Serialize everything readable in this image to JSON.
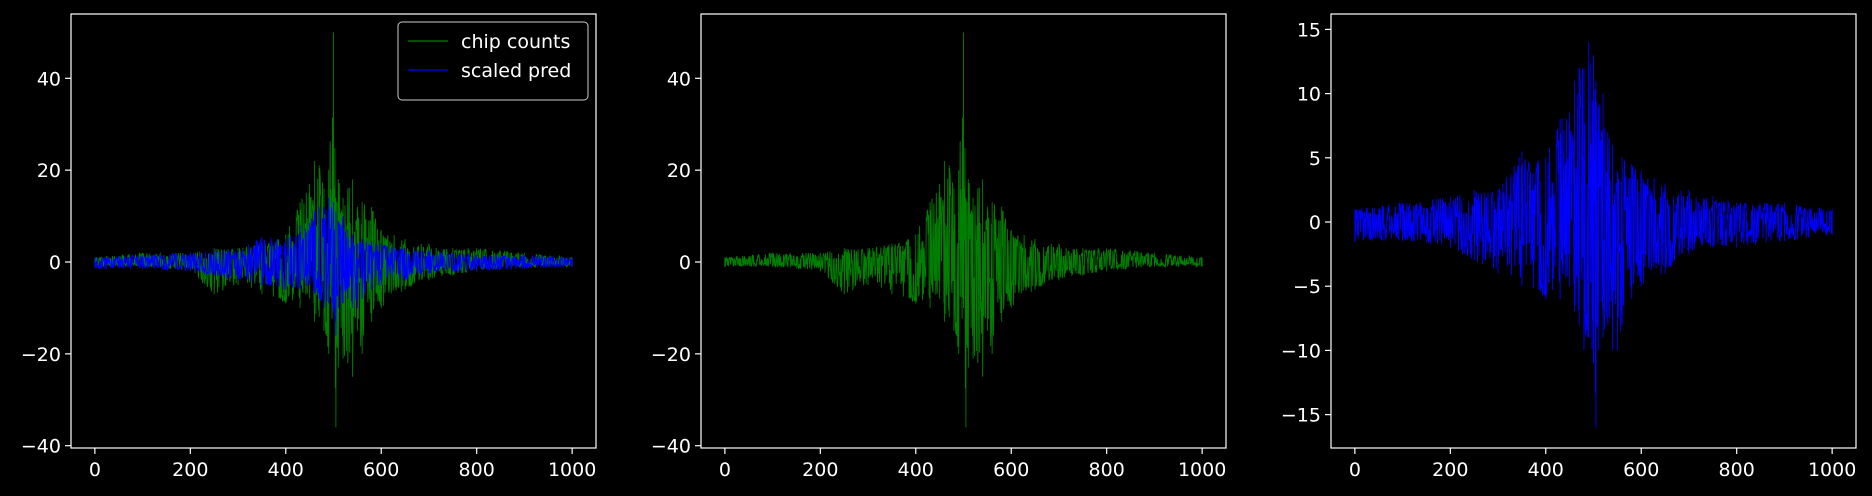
{
  "chart_data": [
    {
      "type": "line",
      "xlim": [
        -50,
        1050
      ],
      "ylim": [
        -40.5,
        54
      ],
      "xticks": [
        0,
        200,
        400,
        600,
        800,
        1000
      ],
      "yticks": [
        -40,
        -20,
        0,
        20,
        40
      ],
      "grid": false,
      "legend": {
        "placement": "top-right",
        "entries": [
          "chip counts",
          "scaled pred"
        ]
      },
      "series": [
        {
          "name": "chip counts",
          "color": "#008000",
          "x": [
            0,
            100,
            200,
            250,
            300,
            350,
            400,
            430,
            450,
            460,
            470,
            480,
            490,
            500,
            505,
            510,
            520,
            530,
            540,
            550,
            560,
            580,
            600,
            650,
            700,
            750,
            800,
            900,
            1000
          ],
          "upper": [
            1,
            2,
            2,
            3,
            3,
            4,
            6,
            13,
            17,
            22,
            21,
            16,
            20,
            50,
            14,
            18,
            14,
            16,
            18,
            12,
            13,
            12,
            7,
            5,
            4,
            3,
            3,
            2,
            1
          ],
          "lower": [
            -1,
            -1,
            -2,
            -7,
            -5,
            -7,
            -9,
            -10,
            -8,
            -13,
            -12,
            -15,
            -20,
            -10,
            -36,
            -23,
            -21,
            -22,
            -25,
            -15,
            -20,
            -13,
            -10,
            -6,
            -4,
            -3,
            -2,
            -1,
            -1
          ]
        },
        {
          "name": "scaled pred",
          "color": "#0000ff",
          "x": [
            0,
            100,
            200,
            250,
            300,
            350,
            400,
            430,
            450,
            460,
            470,
            480,
            490,
            500,
            505,
            510,
            520,
            530,
            540,
            550,
            560,
            580,
            600,
            650,
            700,
            750,
            800,
            900,
            1000
          ],
          "upper": [
            1,
            1.5,
            2,
            2.5,
            2.5,
            5.5,
            5,
            8,
            8.5,
            11,
            12,
            12,
            14,
            13,
            11,
            9,
            10,
            7,
            6,
            4,
            5,
            4.5,
            4,
            3,
            2.5,
            2,
            1.5,
            1.5,
            1
          ],
          "lower": [
            -1.5,
            -1.5,
            -2,
            -3,
            -4,
            -5,
            -6,
            -6,
            -5,
            -7,
            -8,
            -10,
            -9,
            -11,
            -16,
            -10,
            -9,
            -8,
            -10,
            -10,
            -8,
            -6,
            -5,
            -4,
            -2.5,
            -2,
            -2,
            -1.5,
            -1
          ]
        }
      ]
    },
    {
      "type": "line",
      "xlim": [
        -50,
        1050
      ],
      "ylim": [
        -40.5,
        54
      ],
      "xticks": [
        0,
        200,
        400,
        600,
        800,
        1000
      ],
      "yticks": [
        -40,
        -20,
        0,
        20,
        40
      ],
      "grid": false,
      "series": [
        {
          "color": "#008000",
          "x": [
            0,
            100,
            200,
            250,
            300,
            350,
            400,
            430,
            450,
            460,
            470,
            480,
            490,
            500,
            505,
            510,
            520,
            530,
            540,
            550,
            560,
            580,
            600,
            650,
            700,
            750,
            800,
            900,
            1000
          ],
          "upper": [
            1,
            2,
            2,
            3,
            3,
            4,
            6,
            13,
            17,
            22,
            21,
            16,
            20,
            50,
            14,
            18,
            14,
            16,
            18,
            12,
            13,
            12,
            7,
            5,
            4,
            3,
            3,
            2,
            1
          ],
          "lower": [
            -1,
            -1,
            -2,
            -7,
            -5,
            -7,
            -9,
            -10,
            -8,
            -13,
            -12,
            -15,
            -20,
            -10,
            -36,
            -23,
            -21,
            -22,
            -25,
            -15,
            -20,
            -13,
            -10,
            -6,
            -4,
            -3,
            -2,
            -1,
            -1
          ]
        }
      ]
    },
    {
      "type": "line",
      "xlim": [
        -50,
        1050
      ],
      "ylim": [
        -17.6,
        16.2
      ],
      "xticks": [
        0,
        200,
        400,
        600,
        800,
        1000
      ],
      "yticks": [
        -15,
        -10,
        -5,
        0,
        5,
        10,
        15
      ],
      "grid": false,
      "series": [
        {
          "color": "#0000ff",
          "x": [
            0,
            100,
            200,
            250,
            300,
            350,
            400,
            430,
            450,
            460,
            470,
            480,
            490,
            500,
            505,
            510,
            520,
            530,
            540,
            550,
            560,
            580,
            600,
            650,
            700,
            750,
            800,
            900,
            1000
          ],
          "upper": [
            1,
            1.5,
            2,
            2.5,
            2.5,
            5.5,
            5,
            8,
            8.5,
            11,
            12,
            12,
            14,
            13,
            11,
            9,
            10,
            7,
            6,
            4,
            5,
            4.5,
            4,
            3,
            2.5,
            2,
            1.5,
            1.5,
            1
          ],
          "lower": [
            -1.5,
            -1.5,
            -2,
            -3,
            -4,
            -5,
            -6,
            -6,
            -5,
            -7,
            -8,
            -10,
            -9,
            -11,
            -16,
            -10,
            -9,
            -8,
            -10,
            -10,
            -8,
            -6,
            -5,
            -4,
            -2.5,
            -2,
            -2,
            -1.5,
            -1
          ]
        }
      ]
    }
  ],
  "theme": {
    "background": "#000000",
    "foreground": "#ffffff"
  }
}
